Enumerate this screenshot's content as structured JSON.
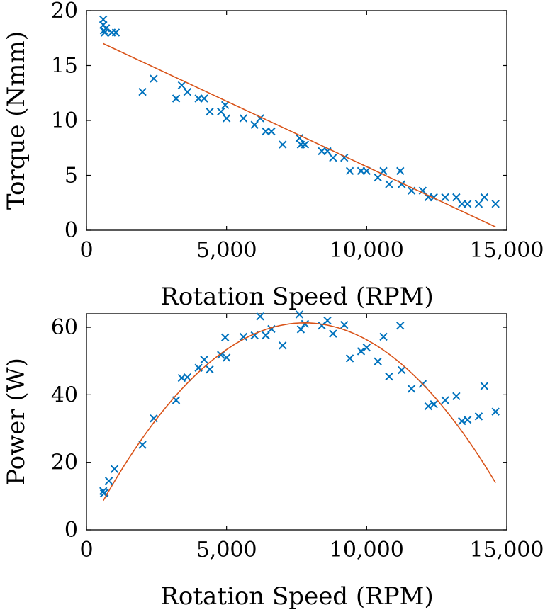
{
  "colors": {
    "marker": "#0072BD",
    "fit": "#D95319"
  },
  "chart_data": [
    {
      "type": "scatter",
      "xlabel": "Rotation Speed (RPM)",
      "ylabel": "Torque (Nmm)",
      "xlim": [
        0,
        15000
      ],
      "ylim": [
        0,
        20
      ],
      "xticks": [
        0,
        5000,
        10000,
        15000
      ],
      "xtick_labels": [
        "0",
        "5,000",
        "10,000",
        "15,000"
      ],
      "yticks": [
        0,
        5,
        10,
        15,
        20
      ],
      "ytick_labels": [
        "0",
        "5",
        "10",
        "15",
        "20"
      ],
      "grid": false,
      "series": [
        {
          "marker": "x",
          "points": [
            [
              600,
              19.2
            ],
            [
              600,
              18.7
            ],
            [
              620,
              18.2
            ],
            [
              650,
              18.0
            ],
            [
              700,
              18.4
            ],
            [
              900,
              18.0
            ],
            [
              1050,
              18.0
            ],
            [
              2000,
              12.6
            ],
            [
              2400,
              13.8
            ],
            [
              3200,
              12.0
            ],
            [
              3400,
              13.2
            ],
            [
              3600,
              12.6
            ],
            [
              4000,
              12.0
            ],
            [
              4200,
              12.0
            ],
            [
              4400,
              10.8
            ],
            [
              4800,
              10.8
            ],
            [
              4950,
              11.4
            ],
            [
              5000,
              10.2
            ],
            [
              5600,
              10.2
            ],
            [
              6000,
              9.6
            ],
            [
              6200,
              10.2
            ],
            [
              6400,
              9.0
            ],
            [
              6600,
              9.0
            ],
            [
              7000,
              7.8
            ],
            [
              7600,
              8.4
            ],
            [
              7650,
              7.8
            ],
            [
              7800,
              7.8
            ],
            [
              8400,
              7.2
            ],
            [
              8600,
              7.2
            ],
            [
              8800,
              6.6
            ],
            [
              9200,
              6.6
            ],
            [
              9400,
              5.4
            ],
            [
              9800,
              5.4
            ],
            [
              10000,
              5.4
            ],
            [
              10400,
              4.8
            ],
            [
              10600,
              5.4
            ],
            [
              10800,
              4.2
            ],
            [
              11200,
              5.4
            ],
            [
              11250,
              4.2
            ],
            [
              11600,
              3.6
            ],
            [
              12000,
              3.6
            ],
            [
              12200,
              3.0
            ],
            [
              12400,
              3.0
            ],
            [
              12800,
              3.0
            ],
            [
              13200,
              3.0
            ],
            [
              13400,
              2.4
            ],
            [
              13600,
              2.4
            ],
            [
              14000,
              2.4
            ],
            [
              14200,
              3.0
            ],
            [
              14600,
              2.4
            ]
          ]
        },
        {
          "fit": "linear",
          "x": [
            600,
            14600
          ],
          "y": [
            17.0,
            0.3
          ]
        }
      ]
    },
    {
      "type": "scatter",
      "xlabel": "Rotation Speed (RPM)",
      "ylabel": "Power (W)",
      "xlim": [
        0,
        15000
      ],
      "ylim": [
        0,
        64
      ],
      "xticks": [
        0,
        5000,
        10000,
        15000
      ],
      "xtick_labels": [
        "0",
        "5,000",
        "10,000",
        "15,000"
      ],
      "yticks": [
        0,
        20,
        40,
        60
      ],
      "ytick_labels": [
        "0",
        "20",
        "40",
        "60"
      ],
      "grid": false,
      "series": [
        {
          "marker": "x",
          "points": [
            [
              600,
              11.5
            ],
            [
              620,
              10.8
            ],
            [
              650,
              11.0
            ],
            [
              800,
              14.5
            ],
            [
              1000,
              18.0
            ],
            [
              2000,
              25.2
            ],
            [
              2400,
              33.0
            ],
            [
              3200,
              38.4
            ],
            [
              3400,
              45.0
            ],
            [
              3600,
              45.2
            ],
            [
              4000,
              48.0
            ],
            [
              4200,
              50.4
            ],
            [
              4400,
              47.5
            ],
            [
              4800,
              51.8
            ],
            [
              4950,
              57.0
            ],
            [
              5000,
              51.0
            ],
            [
              5600,
              57.2
            ],
            [
              6000,
              57.6
            ],
            [
              6200,
              63.2
            ],
            [
              6400,
              57.6
            ],
            [
              6600,
              59.5
            ],
            [
              7000,
              54.6
            ],
            [
              7600,
              63.8
            ],
            [
              7650,
              59.4
            ],
            [
              7800,
              61.0
            ],
            [
              8400,
              60.5
            ],
            [
              8600,
              62.0
            ],
            [
              8800,
              58.1
            ],
            [
              9200,
              60.7
            ],
            [
              9400,
              50.8
            ],
            [
              9800,
              52.9
            ],
            [
              10000,
              54.0
            ],
            [
              10400,
              49.9
            ],
            [
              10600,
              57.2
            ],
            [
              10800,
              45.4
            ],
            [
              11200,
              60.5
            ],
            [
              11250,
              47.3
            ],
            [
              11600,
              41.8
            ],
            [
              12000,
              43.2
            ],
            [
              12200,
              36.6
            ],
            [
              12400,
              37.2
            ],
            [
              12800,
              38.4
            ],
            [
              13200,
              39.6
            ],
            [
              13400,
              32.2
            ],
            [
              13600,
              32.6
            ],
            [
              14000,
              33.6
            ],
            [
              14200,
              42.6
            ],
            [
              14600,
              35.0
            ]
          ]
        },
        {
          "fit": "quadratic",
          "x_range": [
            600,
            14600
          ],
          "coefficients": [
            -0.5,
            0.01588,
            -1.02e-06
          ]
        }
      ]
    }
  ]
}
